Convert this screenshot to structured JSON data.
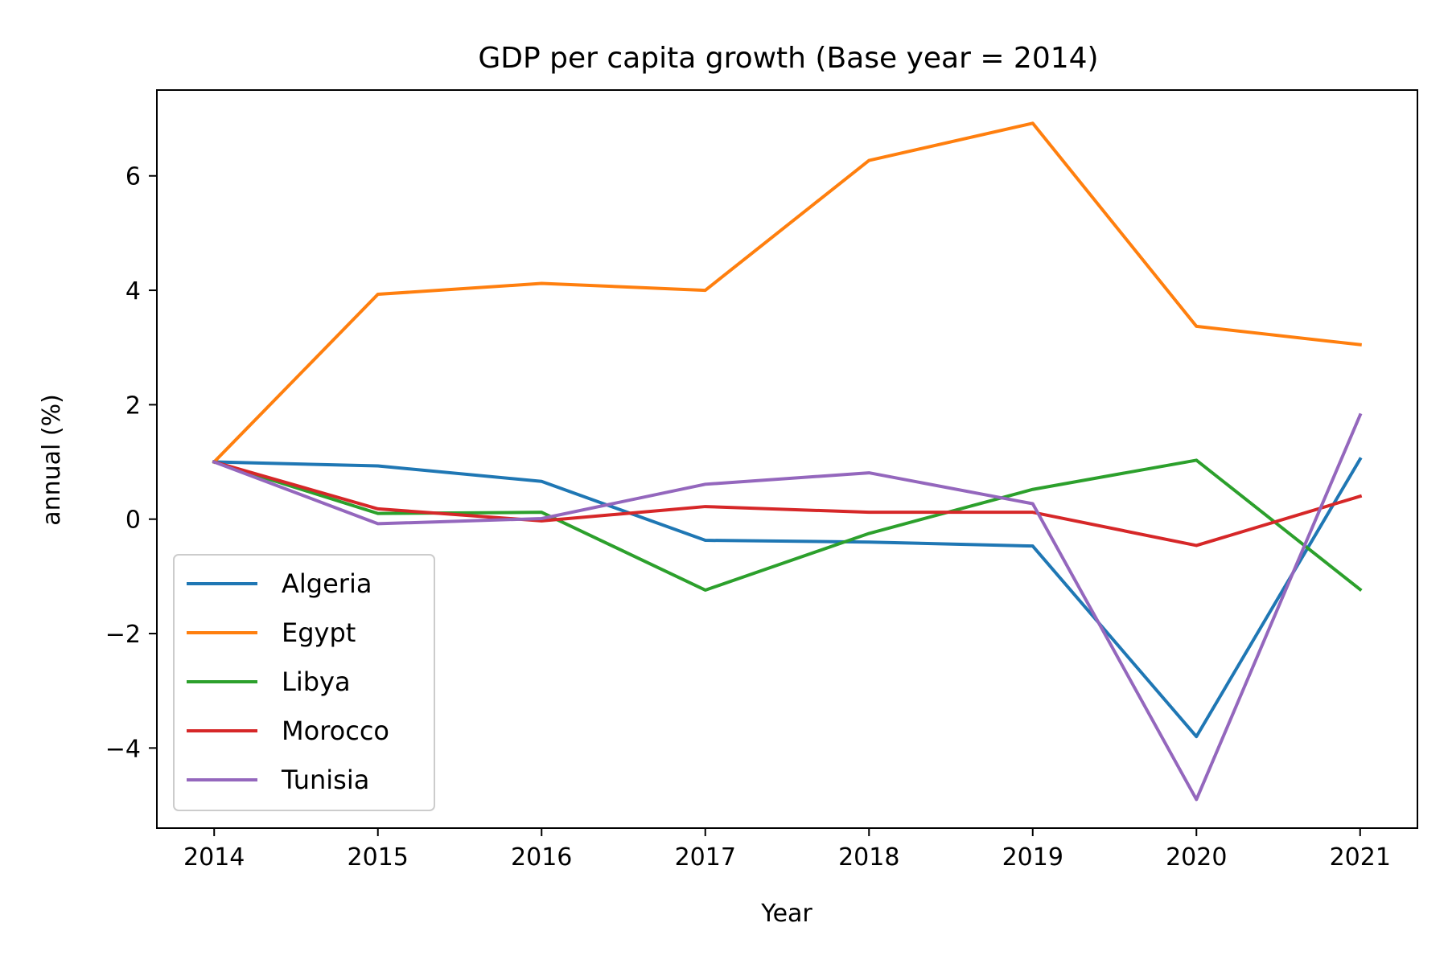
{
  "chart_data": {
    "type": "line",
    "title": "GDP per capita growth (Base year = 2014)",
    "xlabel": "Year",
    "ylabel": "annual (%)",
    "x": [
      "2014",
      "2015",
      "2016",
      "2017",
      "2018",
      "2019",
      "2020",
      "2021"
    ],
    "xlim": [
      2013.65,
      2021.35
    ],
    "ylim": [
      -5.4,
      7.5
    ],
    "yticks": [
      {
        "value": -4,
        "label": "−4"
      },
      {
        "value": -2,
        "label": "−2"
      },
      {
        "value": 0,
        "label": "0"
      },
      {
        "value": 2,
        "label": "2"
      },
      {
        "value": 4,
        "label": "4"
      },
      {
        "value": 6,
        "label": "6"
      }
    ],
    "grid": false,
    "legend_position": "lower-left",
    "series": [
      {
        "name": "Algeria",
        "color": "#1f77b4",
        "values": [
          1.0,
          0.93,
          0.66,
          -0.37,
          -0.4,
          -0.47,
          -3.8,
          1.05
        ]
      },
      {
        "name": "Egypt",
        "color": "#ff7f0e",
        "values": [
          1.0,
          3.93,
          4.12,
          4.0,
          6.27,
          6.92,
          3.37,
          3.05
        ]
      },
      {
        "name": "Libya",
        "color": "#2ca02c",
        "values": [
          1.0,
          0.1,
          0.12,
          -1.24,
          -0.25,
          0.52,
          1.03,
          -1.23
        ]
      },
      {
        "name": "Morocco",
        "color": "#d62728",
        "values": [
          1.0,
          0.18,
          -0.03,
          0.22,
          0.12,
          0.12,
          -0.46,
          0.4
        ]
      },
      {
        "name": "Tunisia",
        "color": "#9467bd",
        "values": [
          1.0,
          -0.08,
          0.01,
          0.61,
          0.81,
          0.27,
          -4.9,
          1.82
        ]
      }
    ]
  }
}
